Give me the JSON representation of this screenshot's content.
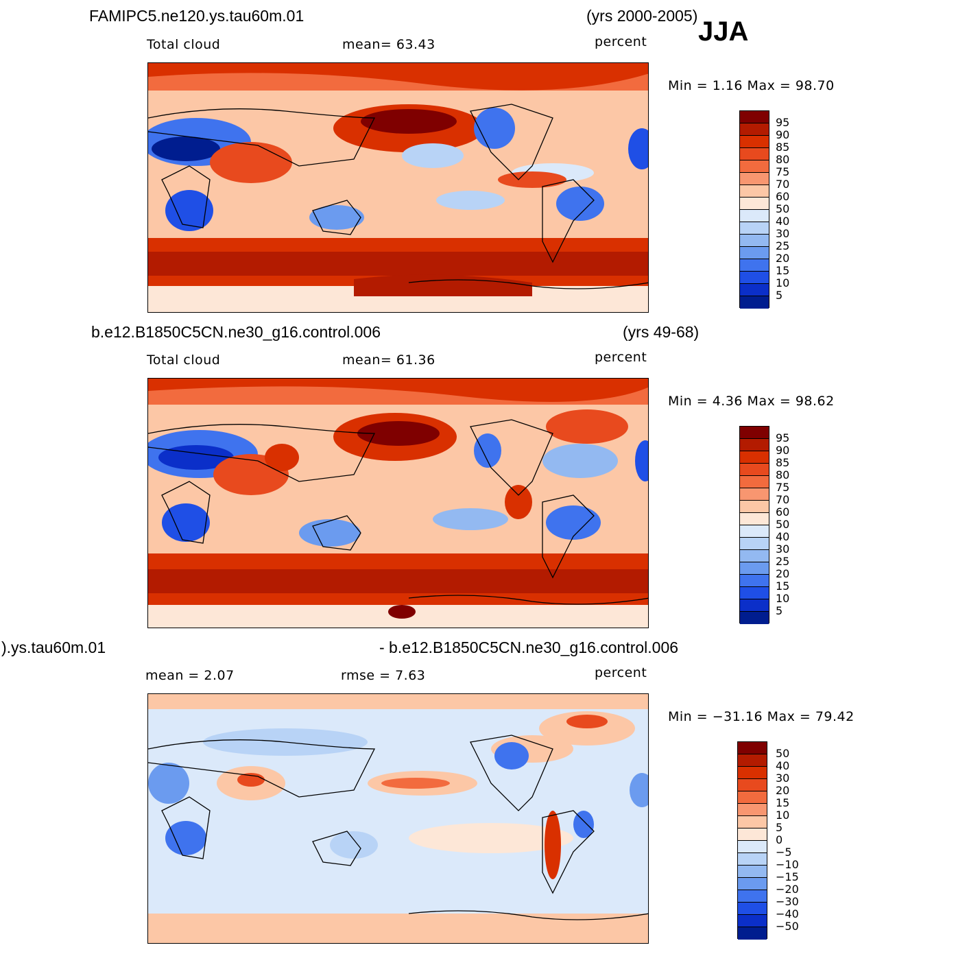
{
  "season": "JJA",
  "panels": [
    {
      "case": "FAMIPC5.ne120.ys.tau60m.01",
      "years": "(yrs 2000-2005)",
      "variable": "Total cloud",
      "stat1": "mean=   63.43",
      "units": "percent",
      "minmax": "Min  =    1.16  Max  =    98.70",
      "colorbar": {
        "labels": [
          "95",
          "90",
          "85",
          "80",
          "75",
          "70",
          "60",
          "50",
          "40",
          "30",
          "25",
          "20",
          "15",
          "10",
          "5"
        ],
        "colors": [
          "#7f0000",
          "#b31b00",
          "#d93000",
          "#e84a1e",
          "#f26b3e",
          "#f89670",
          "#fcc7a6",
          "#fde7d7",
          "#dbe9fa",
          "#b8d3f6",
          "#93b9f1",
          "#6b9bef",
          "#3f73ee",
          "#1f4fe6",
          "#0b2fc9",
          "#001d8f"
        ]
      }
    },
    {
      "case": "b.e12.B1850C5CN.ne30_g16.control.006",
      "years": "(yrs 49-68)",
      "variable": "Total cloud",
      "stat1": "mean=   61.36",
      "units": "percent",
      "minmax": "Min  =    4.36  Max  =    98.62",
      "colorbar": {
        "labels": [
          "95",
          "90",
          "85",
          "80",
          "75",
          "70",
          "60",
          "50",
          "40",
          "30",
          "25",
          "20",
          "15",
          "10",
          "5"
        ],
        "colors": [
          "#7f0000",
          "#b31b00",
          "#d93000",
          "#e84a1e",
          "#f26b3e",
          "#f89670",
          "#fcc7a6",
          "#fde7d7",
          "#dbe9fa",
          "#b8d3f6",
          "#93b9f1",
          "#6b9bef",
          "#3f73ee",
          "#1f4fe6",
          "#0b2fc9",
          "#001d8f"
        ]
      }
    },
    {
      "case_left": ").ys.tau60m.01",
      "case_right": "- b.e12.B1850C5CN.ne30_g16.control.006",
      "stat1": "mean  =     2.07",
      "stat2": "rmse  =     7.63",
      "units": "percent",
      "minmax": "Min  = −31.16  Max  =    79.42",
      "colorbar": {
        "labels": [
          "50",
          "40",
          "30",
          "20",
          "15",
          "10",
          "5",
          "0",
          "−5",
          "−10",
          "−15",
          "−20",
          "−30",
          "−40",
          "−50"
        ],
        "colors": [
          "#7f0000",
          "#b31b00",
          "#d93000",
          "#e84a1e",
          "#f26b3e",
          "#f89670",
          "#fcc7a6",
          "#fde7d7",
          "#dbe9fa",
          "#b8d3f6",
          "#93b9f1",
          "#6b9bef",
          "#3f73ee",
          "#1f4fe6",
          "#0b2fc9",
          "#001d8f"
        ]
      }
    }
  ]
}
